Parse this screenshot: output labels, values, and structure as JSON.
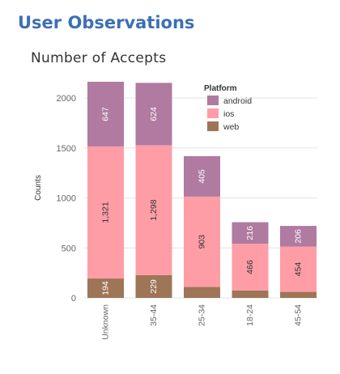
{
  "heading": "User Observations",
  "chart_data": {
    "type": "bar",
    "stacked": true,
    "title": "Number of Accepts",
    "xlabel": "",
    "ylabel": "Counts",
    "ylim": [
      0,
      2200
    ],
    "yticks": [
      0,
      500,
      1000,
      1500,
      2000
    ],
    "ytick_labels": [
      "0",
      "500",
      "1000",
      "1500",
      "2000"
    ],
    "grid": "horizontal",
    "categories": [
      "Unknown",
      "35-44",
      "25-34",
      "18-24",
      "45-54"
    ],
    "legend": {
      "title": "Platform",
      "placement": "top-right"
    },
    "series": [
      {
        "name": "web",
        "color": "#9e7557",
        "values": [
          194,
          229,
          110,
          75,
          60
        ],
        "labels": [
          "194",
          "229",
          "",
          "",
          ""
        ]
      },
      {
        "name": "ios",
        "color": "#ff9da7",
        "values": [
          1321,
          1298,
          903,
          466,
          454
        ],
        "labels": [
          "1,321",
          "1,298",
          "903",
          "466",
          "454"
        ]
      },
      {
        "name": "android",
        "color": "#b07aa1",
        "values": [
          647,
          624,
          405,
          216,
          206
        ],
        "labels": [
          "647",
          "624",
          "405",
          "216",
          "206"
        ]
      }
    ],
    "legend_order": [
      "android",
      "ios",
      "web"
    ]
  }
}
